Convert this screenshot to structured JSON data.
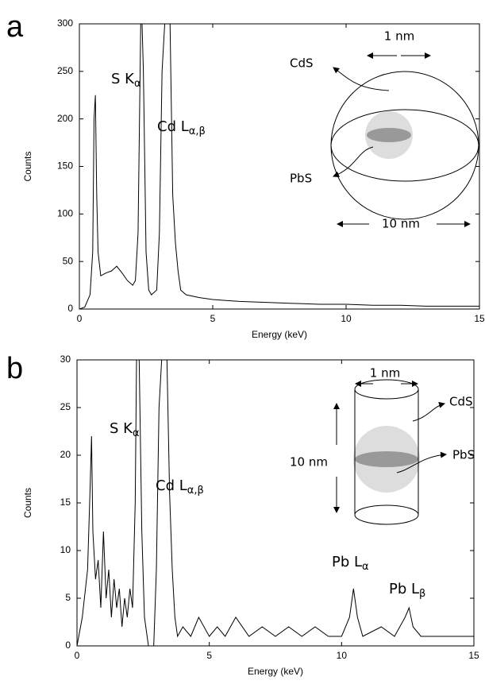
{
  "chart_data": [
    {
      "type": "line",
      "panel": "a",
      "xlabel": "Energy (keV)",
      "ylabel": "Counts",
      "color": "#000000",
      "x": [
        0,
        0.2,
        0.4,
        0.5,
        0.55,
        0.6,
        0.65,
        0.7,
        0.8,
        1.0,
        1.2,
        1.4,
        1.6,
        1.8,
        2.0,
        2.1,
        2.2,
        2.3,
        2.35,
        2.4,
        2.5,
        2.6,
        2.7,
        2.9,
        3.0,
        3.1,
        3.2,
        3.3,
        3.4,
        3.5,
        3.6,
        3.7,
        3.8,
        4.0,
        4.5,
        5,
        5.5,
        6,
        7,
        8,
        9,
        10,
        11,
        12,
        13,
        14,
        15
      ],
      "values": [
        0,
        2,
        15,
        60,
        200,
        225,
        120,
        60,
        35,
        38,
        40,
        45,
        38,
        30,
        25,
        30,
        80,
        300,
        300,
        250,
        60,
        20,
        15,
        20,
        80,
        250,
        300,
        300,
        300,
        120,
        70,
        40,
        20,
        15,
        12,
        10,
        9,
        8,
        7,
        6,
        5,
        5,
        4,
        4,
        3,
        3,
        3
      ],
      "xlim": [
        0,
        15
      ],
      "ylim": [
        0,
        300
      ],
      "xticks": [
        0,
        5,
        10,
        15
      ],
      "yticks": [
        0,
        50,
        100,
        150,
        200,
        250,
        300
      ],
      "annotations": [
        {
          "text": "S K",
          "sub": "α"
        },
        {
          "text": "Cd L",
          "sub": "α,β"
        }
      ],
      "inset_labels": [
        "CdS",
        "PbS",
        "1 nm",
        "10 nm"
      ]
    },
    {
      "type": "line",
      "panel": "b",
      "xlabel": "Energy (keV)",
      "ylabel": "Counts",
      "color": "#000000",
      "x": [
        0,
        0.2,
        0.4,
        0.5,
        0.55,
        0.6,
        0.7,
        0.8,
        0.9,
        1.0,
        1.1,
        1.2,
        1.3,
        1.4,
        1.5,
        1.6,
        1.7,
        1.8,
        1.9,
        2.0,
        2.1,
        2.2,
        2.25,
        2.35,
        2.45,
        2.55,
        2.7,
        2.9,
        3.0,
        3.1,
        3.2,
        3.3,
        3.4,
        3.5,
        3.6,
        3.7,
        3.8,
        4.0,
        4.3,
        4.6,
        5.0,
        5.3,
        5.6,
        6.0,
        6.5,
        7.0,
        7.5,
        8.0,
        8.5,
        9.0,
        9.5,
        10.0,
        10.3,
        10.45,
        10.6,
        10.8,
        11.5,
        12.0,
        12.4,
        12.55,
        12.7,
        13,
        14,
        15
      ],
      "values": [
        0,
        3,
        8,
        17,
        22,
        12,
        7,
        9,
        4,
        12,
        5,
        8,
        3,
        7,
        4,
        6,
        2,
        5,
        3,
        6,
        4,
        15,
        30,
        30,
        12,
        3,
        0,
        0,
        8,
        25,
        30,
        30,
        30,
        16,
        8,
        3,
        1,
        2,
        1,
        3,
        1,
        2,
        1,
        3,
        1,
        2,
        1,
        2,
        1,
        2,
        1,
        1,
        3,
        6,
        3,
        1,
        2,
        1,
        3,
        4,
        2,
        1,
        1,
        1
      ],
      "xlim": [
        0,
        15
      ],
      "ylim": [
        0,
        30
      ],
      "xticks": [
        0,
        5,
        10,
        15
      ],
      "yticks": [
        0,
        5,
        10,
        15,
        20,
        25,
        30
      ],
      "annotations": [
        {
          "text": "S K",
          "sub": "α"
        },
        {
          "text": "Cd L",
          "sub": "α,β"
        },
        {
          "text": "Pb L",
          "sub": "α"
        },
        {
          "text": "Pb L",
          "sub": "β"
        }
      ],
      "inset_labels": [
        "1 nm",
        "CdS",
        "PbS",
        "10 nm"
      ]
    }
  ]
}
